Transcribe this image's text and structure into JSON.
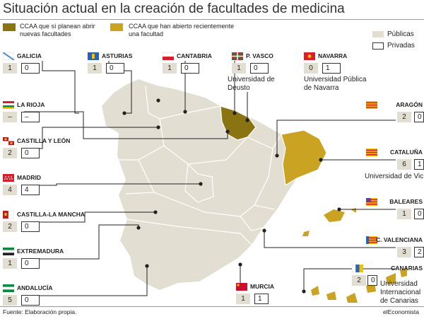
{
  "title": "Situación actual en la creación de facultades de medicina",
  "legend": {
    "planned": "CCAA que sí planean abrir nuevas facultades",
    "opened": "CCAA que han abierto recientemente una facultad",
    "public": "Públicas",
    "private": "Privadas"
  },
  "colors": {
    "planned": "#8a7412",
    "opened": "#c9a321",
    "land": "#e2dfd2",
    "sea": "#ffffff",
    "border": "#ffffff"
  },
  "footer": {
    "source": "Fuente: Elaboración propia.",
    "brand": "elEconomista"
  },
  "chart_data": {
    "type": "table",
    "columns": [
      "Públicas",
      "Privadas"
    ],
    "rows": [
      {
        "region": "GALICIA",
        "public": "1",
        "private": "0"
      },
      {
        "region": "ASTURIAS",
        "public": "1",
        "private": "0"
      },
      {
        "region": "CANTABRIA",
        "public": "1",
        "private": "0"
      },
      {
        "region": "P. VASCO",
        "public": "1",
        "private": "0",
        "note": "Universidad de Deusto",
        "status": "planned"
      },
      {
        "region": "NAVARRA",
        "public": "0",
        "private": "1",
        "note": "Universidad Pública de Navarra",
        "status": "planned"
      },
      {
        "region": "LA RIOJA",
        "public": "–",
        "private": "–"
      },
      {
        "region": "ARAGÓN",
        "public": "2",
        "private": "0"
      },
      {
        "region": "CASTILLA Y LEÓN",
        "public": "2",
        "private": "0"
      },
      {
        "region": "CATALUÑA",
        "public": "6",
        "private": "1",
        "note": "Universidad de Vic",
        "status": "opened"
      },
      {
        "region": "MADRID",
        "public": "4",
        "private": "4"
      },
      {
        "region": "BALEARES",
        "public": "1",
        "private": "0",
        "status": "opened"
      },
      {
        "region": "CASTILLA-LA MANCHA",
        "public": "2",
        "private": "0"
      },
      {
        "region": "C. VALENCIANA",
        "public": "3",
        "private": "2"
      },
      {
        "region": "EXTREMADURA",
        "public": "1",
        "private": "0"
      },
      {
        "region": "CANARIAS",
        "public": "2",
        "private": "0",
        "note": "Universidad Internacional de Canarias",
        "status": "opened"
      },
      {
        "region": "ANDALUCÍA",
        "public": "5",
        "private": "0"
      },
      {
        "region": "MURCIA",
        "public": "1",
        "private": "1"
      }
    ]
  }
}
